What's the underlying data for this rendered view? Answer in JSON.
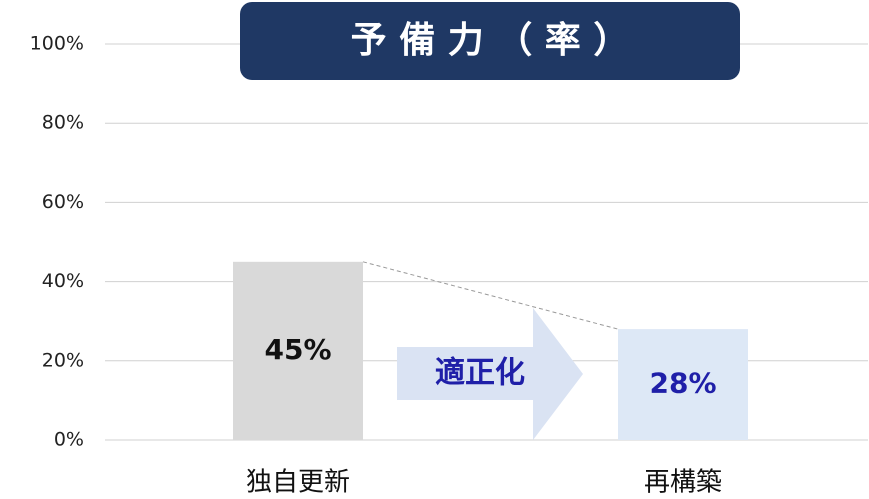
{
  "chart_data": {
    "type": "bar",
    "title": "予 備 力 （ 率 ）",
    "categories": [
      "独自更新",
      "再構築"
    ],
    "values": [
      45,
      28
    ],
    "value_labels": [
      "45%",
      "28%"
    ],
    "colors": [
      "#d9d9d9",
      "#dde8f6"
    ],
    "ylim": [
      0,
      100
    ],
    "yticks": [
      {
        "value": 0,
        "label": "0%"
      },
      {
        "value": 20,
        "label": "20%"
      },
      {
        "value": 40,
        "label": "40%"
      },
      {
        "value": 60,
        "label": "60%"
      },
      {
        "value": 80,
        "label": "80%"
      },
      {
        "value": 100,
        "label": "100%"
      }
    ],
    "grid": true,
    "annotation": "適正化"
  }
}
